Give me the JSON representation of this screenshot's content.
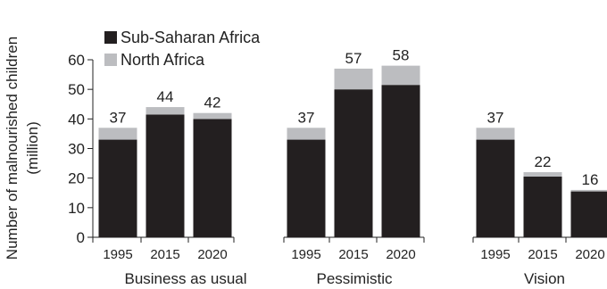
{
  "chart_data": {
    "type": "bar",
    "stacked": true,
    "ylabel": "Number of malnourished children (million)",
    "ylim": [
      0,
      60
    ],
    "yticks": [
      0,
      10,
      20,
      30,
      40,
      50,
      60
    ],
    "legend_position": "top-left",
    "groups": [
      {
        "name": "Business as usual",
        "categories": [
          "1995",
          "2015",
          "2020"
        ],
        "totals": [
          "37",
          "44",
          "42"
        ]
      },
      {
        "name": "Pessimistic",
        "categories": [
          "1995",
          "2015",
          "2020"
        ],
        "totals": [
          "37",
          "57",
          "58"
        ]
      },
      {
        "name": "Vision",
        "categories": [
          "1995",
          "2015",
          "2020"
        ],
        "totals": [
          "37",
          "22",
          "16"
        ]
      }
    ],
    "series": [
      {
        "name": "Sub-Saharan Africa",
        "color": "#231f20",
        "values": [
          33,
          41.5,
          40,
          33,
          50,
          51.5,
          33,
          20.5,
          15.5
        ]
      },
      {
        "name": "North Africa",
        "color": "#bcbdc0",
        "values": [
          4,
          2.5,
          2,
          4,
          7,
          6.5,
          4,
          1.5,
          0.5
        ]
      }
    ]
  }
}
